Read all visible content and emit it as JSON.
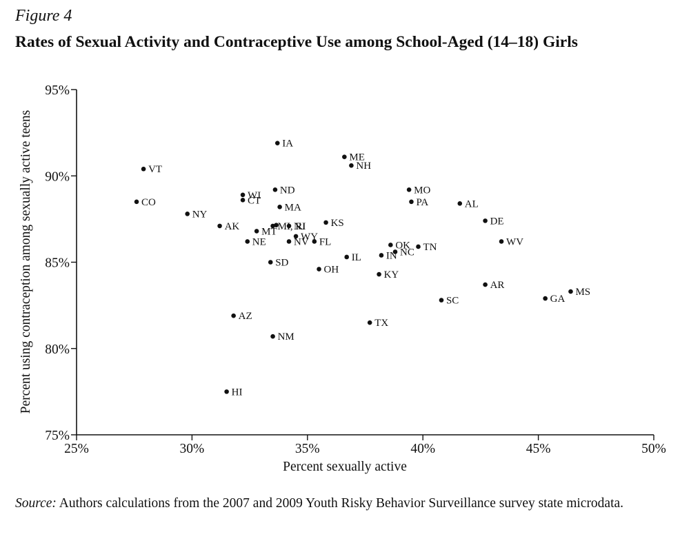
{
  "figure_label": "Figure 4",
  "title": "Rates of Sexual Activity and Contraceptive Use among School-Aged (14–18) Girls",
  "source_label": "Source:",
  "source_text": "Authors calculations from the 2007 and 2009 Youth Risky Behavior Surveillance survey state microdata.",
  "chart_data": {
    "type": "scatter",
    "title": "Rates of Sexual Activity and Contraceptive Use among School-Aged (14–18) Girls",
    "xlabel": "Percent sexually active",
    "ylabel": "Percent using contraception among sexually active teens",
    "xlim": [
      25,
      50
    ],
    "ylim": [
      75,
      95
    ],
    "xticks": [
      25,
      30,
      35,
      40,
      45,
      50
    ],
    "yticks": [
      75,
      80,
      85,
      90,
      95
    ],
    "tick_suffix": "%",
    "grid": false,
    "legend": "none",
    "point_color": "#111111",
    "points": [
      {
        "label": "IA",
        "x": 33.7,
        "y": 91.9
      },
      {
        "label": "VT",
        "x": 27.9,
        "y": 90.4
      },
      {
        "label": "ME",
        "x": 36.6,
        "y": 91.1
      },
      {
        "label": "NH",
        "x": 36.9,
        "y": 90.6
      },
      {
        "label": "WI",
        "x": 32.2,
        "y": 88.9
      },
      {
        "label": "ND",
        "x": 33.6,
        "y": 89.2
      },
      {
        "label": "MO",
        "x": 39.4,
        "y": 89.2
      },
      {
        "label": "CT",
        "x": 32.2,
        "y": 88.6
      },
      {
        "label": "CO",
        "x": 27.6,
        "y": 88.5
      },
      {
        "label": "MA",
        "x": 33.8,
        "y": 88.2
      },
      {
        "label": "PA",
        "x": 39.5,
        "y": 88.5
      },
      {
        "label": "AL",
        "x": 41.6,
        "y": 88.4
      },
      {
        "label": "NY",
        "x": 29.8,
        "y": 87.8
      },
      {
        "label": "DE",
        "x": 42.7,
        "y": 87.4
      },
      {
        "label": "KS",
        "x": 35.8,
        "y": 87.3
      },
      {
        "label": "AK",
        "x": 31.2,
        "y": 87.1
      },
      {
        "label": "MI, RI",
        "x": 33.5,
        "y": 87.1
      },
      {
        "label": "",
        "x": 33.65,
        "y": 87.15
      },
      {
        "label": "NJ",
        "x": 34.2,
        "y": 87.1
      },
      {
        "label": "MT",
        "x": 32.8,
        "y": 86.8
      },
      {
        "label": "WY",
        "x": 34.5,
        "y": 86.5
      },
      {
        "label": "FL",
        "x": 35.3,
        "y": 86.2
      },
      {
        "label": "NE",
        "x": 32.4,
        "y": 86.2
      },
      {
        "label": "NV",
        "x": 34.2,
        "y": 86.2
      },
      {
        "label": "WV",
        "x": 43.4,
        "y": 86.2
      },
      {
        "label": "OK",
        "x": 38.6,
        "y": 86.0
      },
      {
        "label": "TN",
        "x": 39.8,
        "y": 85.9
      },
      {
        "label": "NC",
        "x": 38.8,
        "y": 85.6
      },
      {
        "label": "IN",
        "x": 38.2,
        "y": 85.4
      },
      {
        "label": "IL",
        "x": 36.7,
        "y": 85.3
      },
      {
        "label": "SD",
        "x": 33.4,
        "y": 85.0
      },
      {
        "label": "OH",
        "x": 35.5,
        "y": 84.6
      },
      {
        "label": "KY",
        "x": 38.1,
        "y": 84.3
      },
      {
        "label": "AR",
        "x": 42.7,
        "y": 83.7
      },
      {
        "label": "MS",
        "x": 46.4,
        "y": 83.3
      },
      {
        "label": "GA",
        "x": 45.3,
        "y": 82.9
      },
      {
        "label": "SC",
        "x": 40.8,
        "y": 82.8
      },
      {
        "label": "AZ",
        "x": 31.8,
        "y": 81.9
      },
      {
        "label": "TX",
        "x": 37.7,
        "y": 81.5
      },
      {
        "label": "NM",
        "x": 33.5,
        "y": 80.7
      },
      {
        "label": "HI",
        "x": 31.5,
        "y": 77.5
      }
    ]
  }
}
